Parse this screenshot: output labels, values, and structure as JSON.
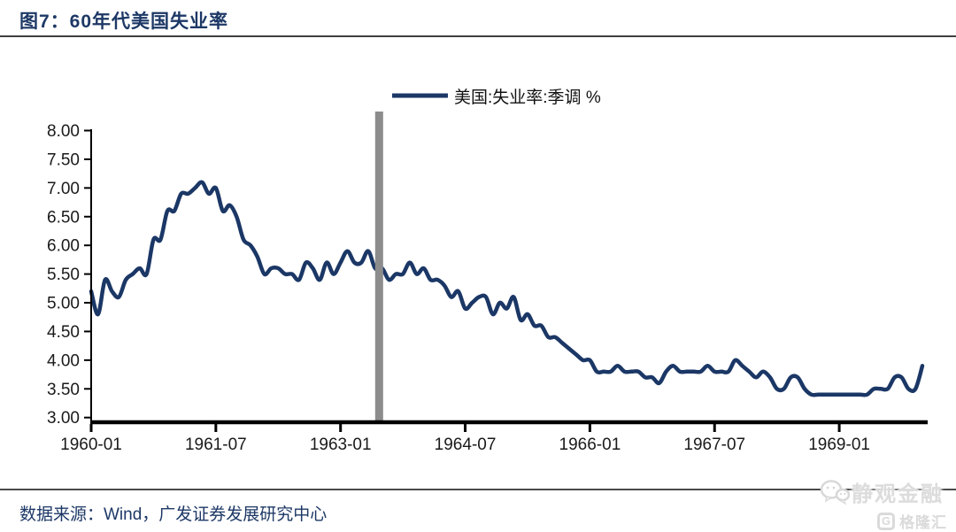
{
  "header": {
    "title": "图7：60年代美国失业率"
  },
  "footer": {
    "source": "数据来源：Wind，广发证券发展研究中心"
  },
  "watermark": {
    "wechat_icon": "chat-bubbles-icon",
    "name": "静观金融",
    "logo_letter": "G",
    "logo_name": "格隆汇"
  },
  "colors": {
    "navy_line": "#1b3766",
    "title_navy": "#1d3866",
    "event_bar_gray": "#8c8c8c",
    "axis_black": "#000000",
    "watermark_gray": "#dcdcdc"
  },
  "chart_data": {
    "type": "line",
    "title": "60年代美国失业率",
    "legend": "美国:失业率:季调 %",
    "legend_position": "top-center",
    "grid": "off",
    "x_start": "1960-01",
    "x_end": "1970-01",
    "frequency": "monthly",
    "x_tick_labels": [
      "1960-01",
      "1961-07",
      "1963-01",
      "1964-07",
      "1966-01",
      "1967-07",
      "1969-01"
    ],
    "x_tick_month_indices": [
      0,
      18,
      36,
      54,
      72,
      90,
      108
    ],
    "y_tick_labels": [
      "8.00",
      "7.50",
      "7.00",
      "6.50",
      "6.00",
      "5.50",
      "5.00",
      "4.50",
      "4.00",
      "3.50",
      "3.00"
    ],
    "ylim": [
      3.0,
      8.0
    ],
    "vline": {
      "month": "1963-06",
      "month_index": 41,
      "color": "#8c8c8c"
    },
    "series": [
      {
        "name": "美国:失业率:季调 %",
        "color": "#1b3766",
        "values": [
          5.2,
          4.8,
          5.4,
          5.2,
          5.1,
          5.4,
          5.5,
          5.6,
          5.5,
          6.1,
          6.1,
          6.6,
          6.6,
          6.9,
          6.9,
          7.0,
          7.1,
          6.9,
          7.0,
          6.6,
          6.7,
          6.5,
          6.1,
          6.0,
          5.8,
          5.5,
          5.6,
          5.6,
          5.5,
          5.5,
          5.4,
          5.7,
          5.6,
          5.4,
          5.7,
          5.5,
          5.7,
          5.9,
          5.7,
          5.7,
          5.9,
          5.6,
          5.6,
          5.4,
          5.5,
          5.5,
          5.7,
          5.5,
          5.6,
          5.4,
          5.4,
          5.3,
          5.1,
          5.2,
          4.9,
          5.0,
          5.1,
          5.1,
          4.8,
          5.0,
          4.9,
          5.1,
          4.7,
          4.8,
          4.6,
          4.6,
          4.4,
          4.4,
          4.3,
          4.2,
          4.1,
          4.0,
          4.0,
          3.8,
          3.8,
          3.8,
          3.9,
          3.8,
          3.8,
          3.8,
          3.7,
          3.7,
          3.6,
          3.8,
          3.9,
          3.8,
          3.8,
          3.8,
          3.8,
          3.9,
          3.8,
          3.8,
          3.8,
          4.0,
          3.9,
          3.8,
          3.7,
          3.8,
          3.7,
          3.5,
          3.5,
          3.7,
          3.7,
          3.5,
          3.4,
          3.4,
          3.4,
          3.4,
          3.4,
          3.4,
          3.4,
          3.4,
          3.4,
          3.5,
          3.5,
          3.5,
          3.7,
          3.7,
          3.5,
          3.5,
          3.9
        ]
      }
    ]
  }
}
